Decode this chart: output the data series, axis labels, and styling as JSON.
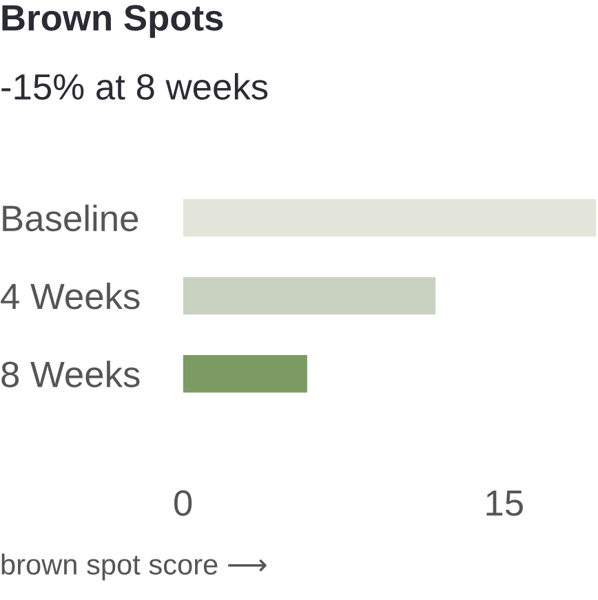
{
  "chart_data": {
    "type": "bar",
    "orientation": "horizontal",
    "title": "Brown Spots",
    "subtitle": "-15% at 8 weeks",
    "categories": [
      "Baseline",
      "4 Weeks",
      "8 Weeks"
    ],
    "values": [
      19.3,
      11.8,
      5.8
    ],
    "colors": [
      "#e3e4da",
      "#c9d1c1",
      "#7b9b62"
    ],
    "xlim": [
      0,
      19.3
    ],
    "xticks": [
      0,
      15
    ],
    "grid": false,
    "legend": false,
    "annotations": [
      "brown spot score ⟶"
    ]
  }
}
